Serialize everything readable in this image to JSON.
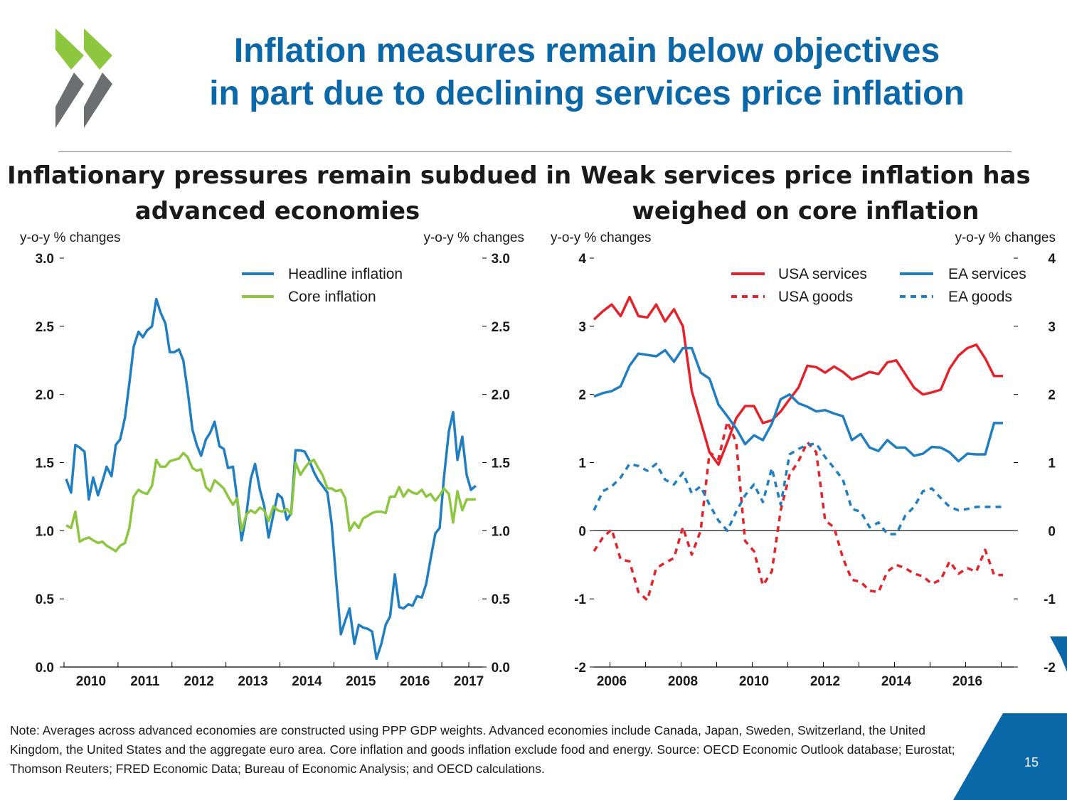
{
  "title": {
    "line1": "Inflation measures remain below objectives",
    "line2": "in part due to declining services price inflation"
  },
  "colors": {
    "title_blue": "#0b68a8",
    "headline_blue": "#1f7fc1",
    "core_green": "#8dc63f",
    "usa_red": "#e2232a",
    "ea_blue": "#1f7fc1",
    "logo_green": "#8dc63f",
    "logo_grey": "#6d6e70",
    "corner_blue": "#0b68a8"
  },
  "chart_data": [
    {
      "type": "line",
      "title_line1": "Inflationary pressures remain subdued in",
      "title_line2": "advanced economies",
      "ylabel_left": "y-o-y % changes",
      "ylabel_right": "y-o-y % changes",
      "ylim": [
        0,
        3
      ],
      "yticks": [
        "0.0",
        "0.5",
        "1.0",
        "1.5",
        "2.0",
        "2.5",
        "3.0"
      ],
      "xlim": [
        2009.5,
        2017.25
      ],
      "xticks": [
        "2010",
        "2011",
        "2012",
        "2013",
        "2014",
        "2015",
        "2016",
        "2017"
      ],
      "legend": [
        "Headline inflation",
        "Core inflation"
      ],
      "series": [
        {
          "name": "Headline inflation",
          "x": [
            2009.54,
            2009.63,
            2009.71,
            2009.79,
            2009.88,
            2009.96,
            2010.04,
            2010.13,
            2010.21,
            2010.29,
            2010.38,
            2010.46,
            2010.54,
            2010.63,
            2010.71,
            2010.79,
            2010.88,
            2010.96,
            2011.04,
            2011.13,
            2011.21,
            2011.29,
            2011.38,
            2011.46,
            2011.54,
            2011.63,
            2011.71,
            2011.79,
            2011.88,
            2011.96,
            2012.04,
            2012.13,
            2012.21,
            2012.29,
            2012.38,
            2012.46,
            2012.54,
            2012.63,
            2012.71,
            2012.79,
            2012.88,
            2012.96,
            2013.04,
            2013.13,
            2013.21,
            2013.29,
            2013.38,
            2013.46,
            2013.54,
            2013.63,
            2013.71,
            2013.79,
            2013.88,
            2013.96,
            2014.04,
            2014.13,
            2014.21,
            2014.29,
            2014.38,
            2014.46,
            2014.54,
            2014.63,
            2014.71,
            2014.79,
            2014.88,
            2014.96,
            2015.04,
            2015.13,
            2015.21,
            2015.29,
            2015.38,
            2015.46,
            2015.54,
            2015.63,
            2015.71,
            2015.79,
            2015.88,
            2015.96,
            2016.04,
            2016.13,
            2016.21,
            2016.29,
            2016.38,
            2016.46,
            2016.54,
            2016.63,
            2016.71,
            2016.79,
            2016.88,
            2016.96,
            2017.04,
            2017.13
          ],
          "values": [
            1.38,
            1.28,
            1.63,
            1.61,
            1.58,
            1.23,
            1.39,
            1.26,
            1.36,
            1.47,
            1.4,
            1.63,
            1.67,
            1.83,
            2.08,
            2.35,
            2.46,
            2.42,
            2.47,
            2.5,
            2.7,
            2.6,
            2.52,
            2.31,
            2.31,
            2.33,
            2.25,
            2.03,
            1.74,
            1.63,
            1.55,
            1.67,
            1.72,
            1.8,
            1.62,
            1.6,
            1.46,
            1.47,
            1.23,
            0.93,
            1.12,
            1.38,
            1.49,
            1.3,
            1.18,
            0.95,
            1.12,
            1.27,
            1.24,
            1.08,
            1.13,
            1.59,
            1.59,
            1.58,
            1.52,
            1.43,
            1.37,
            1.33,
            1.28,
            1.05,
            0.65,
            0.24,
            0.34,
            0.43,
            0.17,
            0.31,
            0.29,
            0.28,
            0.26,
            0.06,
            0.17,
            0.31,
            0.37,
            0.68,
            0.44,
            0.43,
            0.46,
            0.45,
            0.52,
            0.51,
            0.61,
            0.79,
            0.98,
            1.02,
            1.39,
            1.73,
            1.87,
            1.52,
            1.69,
            1.41,
            1.3,
            1.33
          ]
        },
        {
          "name": "Core inflation",
          "x": [
            2009.54,
            2009.63,
            2009.71,
            2009.79,
            2009.88,
            2009.96,
            2010.04,
            2010.13,
            2010.21,
            2010.29,
            2010.38,
            2010.46,
            2010.54,
            2010.63,
            2010.71,
            2010.79,
            2010.88,
            2010.96,
            2011.04,
            2011.13,
            2011.21,
            2011.29,
            2011.38,
            2011.46,
            2011.54,
            2011.63,
            2011.71,
            2011.79,
            2011.88,
            2011.96,
            2012.04,
            2012.13,
            2012.21,
            2012.29,
            2012.38,
            2012.46,
            2012.54,
            2012.63,
            2012.71,
            2012.79,
            2012.88,
            2012.96,
            2013.04,
            2013.13,
            2013.21,
            2013.29,
            2013.38,
            2013.46,
            2013.54,
            2013.63,
            2013.71,
            2013.79,
            2013.88,
            2013.96,
            2014.04,
            2014.13,
            2014.21,
            2014.29,
            2014.38,
            2014.46,
            2014.54,
            2014.63,
            2014.71,
            2014.79,
            2014.88,
            2014.96,
            2015.04,
            2015.13,
            2015.21,
            2015.29,
            2015.38,
            2015.46,
            2015.54,
            2015.63,
            2015.71,
            2015.79,
            2015.88,
            2015.96,
            2016.04,
            2016.13,
            2016.21,
            2016.29,
            2016.38,
            2016.46,
            2016.54,
            2016.63,
            2016.71,
            2016.79,
            2016.88,
            2016.96,
            2017.04,
            2017.13
          ],
          "values": [
            1.04,
            1.02,
            1.14,
            0.92,
            0.94,
            0.95,
            0.93,
            0.91,
            0.92,
            0.89,
            0.87,
            0.85,
            0.89,
            0.91,
            1.02,
            1.25,
            1.3,
            1.28,
            1.27,
            1.33,
            1.52,
            1.47,
            1.47,
            1.51,
            1.52,
            1.53,
            1.57,
            1.54,
            1.46,
            1.44,
            1.45,
            1.32,
            1.29,
            1.37,
            1.34,
            1.31,
            1.25,
            1.19,
            1.24,
            1.0,
            1.12,
            1.15,
            1.13,
            1.17,
            1.15,
            1.07,
            1.18,
            1.15,
            1.14,
            1.16,
            1.12,
            1.5,
            1.41,
            1.46,
            1.5,
            1.52,
            1.46,
            1.41,
            1.31,
            1.31,
            1.29,
            1.3,
            1.24,
            1.0,
            1.06,
            1.02,
            1.09,
            1.11,
            1.13,
            1.14,
            1.14,
            1.13,
            1.25,
            1.25,
            1.32,
            1.25,
            1.3,
            1.28,
            1.27,
            1.3,
            1.25,
            1.27,
            1.22,
            1.26,
            1.31,
            1.27,
            1.06,
            1.29,
            1.15,
            1.23,
            1.23,
            1.23
          ]
        }
      ]
    },
    {
      "type": "line",
      "title_line1": "Weak services price inflation has",
      "title_line2": "weighed on core inflation",
      "ylabel_left": "y-o-y % changes",
      "ylabel_right": "y-o-y % changes",
      "ylim": [
        -2,
        4
      ],
      "yticks": [
        "-2",
        "-1",
        "0",
        "1",
        "2",
        "3",
        "4"
      ],
      "xlim": [
        2005.5,
        2017.3
      ],
      "xticks": [
        "2006",
        "2008",
        "2010",
        "2012",
        "2014",
        "2016"
      ],
      "legend": [
        "USA services",
        "USA goods",
        "EA services",
        "EA goods"
      ],
      "series": [
        {
          "name": "USA services",
          "style": "solid",
          "x": [
            2005.5,
            2005.75,
            2006.0,
            2006.25,
            2006.5,
            2006.75,
            2007.0,
            2007.25,
            2007.5,
            2007.75,
            2008.0,
            2008.25,
            2008.5,
            2008.75,
            2009.0,
            2009.25,
            2009.5,
            2009.75,
            2010.0,
            2010.25,
            2010.5,
            2010.75,
            2011.0,
            2011.25,
            2011.5,
            2011.75,
            2012.0,
            2012.25,
            2012.5,
            2012.75,
            2013.0,
            2013.25,
            2013.5,
            2013.75,
            2014.0,
            2014.25,
            2014.5,
            2014.75,
            2015.0,
            2015.25,
            2015.5,
            2015.75,
            2016.0,
            2016.25,
            2016.5,
            2016.75,
            2017.0
          ],
          "values": [
            3.1,
            3.22,
            3.32,
            3.15,
            3.43,
            3.15,
            3.13,
            3.32,
            3.07,
            3.25,
            3.0,
            2.05,
            1.6,
            1.15,
            0.97,
            1.3,
            1.65,
            1.83,
            1.83,
            1.58,
            1.62,
            1.75,
            1.93,
            2.1,
            2.42,
            2.4,
            2.32,
            2.41,
            2.33,
            2.22,
            2.27,
            2.33,
            2.3,
            2.47,
            2.5,
            2.3,
            2.1,
            2.0,
            2.03,
            2.07,
            2.38,
            2.57,
            2.68,
            2.73,
            2.53,
            2.27,
            2.27
          ]
        },
        {
          "name": "USA goods",
          "style": "dashed",
          "x": [
            2005.5,
            2005.75,
            2006.0,
            2006.25,
            2006.5,
            2006.75,
            2007.0,
            2007.25,
            2007.5,
            2007.75,
            2008.0,
            2008.25,
            2008.5,
            2008.75,
            2009.0,
            2009.25,
            2009.5,
            2009.75,
            2010.0,
            2010.25,
            2010.5,
            2010.75,
            2011.0,
            2011.25,
            2011.5,
            2011.75,
            2012.0,
            2012.25,
            2012.5,
            2012.75,
            2013.0,
            2013.25,
            2013.5,
            2013.75,
            2014.0,
            2014.25,
            2014.5,
            2014.75,
            2015.0,
            2015.25,
            2015.5,
            2015.75,
            2016.0,
            2016.25,
            2016.5,
            2016.75,
            2017.0
          ],
          "values": [
            -0.3,
            -0.1,
            0.02,
            -0.42,
            -0.45,
            -0.9,
            -1.02,
            -0.55,
            -0.47,
            -0.4,
            0.05,
            -0.35,
            0.0,
            1.15,
            1.05,
            1.6,
            1.3,
            -0.15,
            -0.3,
            -0.8,
            -0.6,
            0.3,
            0.82,
            1.02,
            1.3,
            1.15,
            0.15,
            0.05,
            -0.4,
            -0.72,
            -0.75,
            -0.88,
            -0.9,
            -0.6,
            -0.5,
            -0.55,
            -0.63,
            -0.67,
            -0.78,
            -0.72,
            -0.45,
            -0.63,
            -0.55,
            -0.6,
            -0.28,
            -0.65,
            -0.65
          ]
        },
        {
          "name": "EA services",
          "style": "solid",
          "x": [
            2005.5,
            2005.75,
            2006.0,
            2006.25,
            2006.5,
            2006.75,
            2007.0,
            2007.25,
            2007.5,
            2007.75,
            2008.0,
            2008.25,
            2008.5,
            2008.75,
            2009.0,
            2009.25,
            2009.5,
            2009.75,
            2010.0,
            2010.25,
            2010.5,
            2010.75,
            2011.0,
            2011.25,
            2011.5,
            2011.75,
            2012.0,
            2012.25,
            2012.5,
            2012.75,
            2013.0,
            2013.25,
            2013.5,
            2013.75,
            2014.0,
            2014.25,
            2014.5,
            2014.75,
            2015.0,
            2015.25,
            2015.5,
            2015.75,
            2016.0,
            2016.25,
            2016.5,
            2016.75,
            2017.0
          ],
          "values": [
            1.97,
            2.02,
            2.05,
            2.12,
            2.42,
            2.6,
            2.58,
            2.56,
            2.65,
            2.48,
            2.68,
            2.68,
            2.32,
            2.23,
            1.85,
            1.68,
            1.5,
            1.27,
            1.4,
            1.33,
            1.57,
            1.93,
            2.0,
            1.87,
            1.82,
            1.75,
            1.77,
            1.72,
            1.68,
            1.33,
            1.42,
            1.22,
            1.17,
            1.33,
            1.22,
            1.22,
            1.1,
            1.13,
            1.23,
            1.22,
            1.15,
            1.02,
            1.13,
            1.12,
            1.12,
            1.58,
            1.58
          ]
        },
        {
          "name": "EA goods",
          "style": "dashed",
          "x": [
            2005.5,
            2005.75,
            2006.0,
            2006.25,
            2006.5,
            2006.75,
            2007.0,
            2007.25,
            2007.5,
            2007.75,
            2008.0,
            2008.25,
            2008.5,
            2008.75,
            2009.0,
            2009.25,
            2009.5,
            2009.75,
            2010.0,
            2010.25,
            2010.5,
            2010.75,
            2011.0,
            2011.25,
            2011.5,
            2011.75,
            2012.0,
            2012.25,
            2012.5,
            2012.75,
            2013.0,
            2013.25,
            2013.5,
            2013.75,
            2014.0,
            2014.25,
            2014.5,
            2014.75,
            2015.0,
            2015.25,
            2015.5,
            2015.75,
            2016.0,
            2016.25,
            2016.5,
            2016.75,
            2017.0
          ],
          "values": [
            0.3,
            0.58,
            0.65,
            0.78,
            0.98,
            0.95,
            0.88,
            0.98,
            0.75,
            0.68,
            0.85,
            0.55,
            0.65,
            0.38,
            0.15,
            0.0,
            0.28,
            0.52,
            0.68,
            0.42,
            0.92,
            0.38,
            1.12,
            1.2,
            1.26,
            1.28,
            1.08,
            0.92,
            0.75,
            0.32,
            0.28,
            0.05,
            0.12,
            -0.05,
            -0.05,
            0.22,
            0.35,
            0.58,
            0.62,
            0.48,
            0.35,
            0.3,
            0.32,
            0.35,
            0.35,
            0.35,
            0.35
          ]
        }
      ]
    }
  ],
  "note": {
    "text": "Note: Averages across advanced economies are constructed using PPP GDP weights. Advanced economies include Canada, Japan, Sweden, Switzerland, the United Kingdom, the United States and the aggregate euro area. Core inflation and goods inflation exclude food and energy. Source: OECD Economic Outlook database; Eurostat; Thomson Reuters; FRED Economic Data; Bureau of Economic Analysis; and OECD calculations."
  },
  "page_number": "15"
}
